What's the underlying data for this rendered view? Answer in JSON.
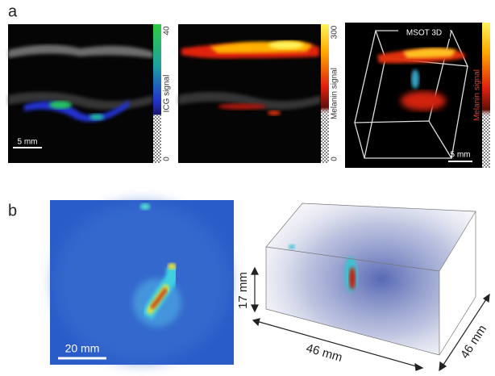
{
  "panel_a": {
    "label": "a",
    "images": [
      {
        "scale_bar": "5 mm",
        "colorbar": {
          "max": 40,
          "label": "ICG signal",
          "min": 0
        }
      },
      {
        "colorbar": {
          "max": 300,
          "label": "Melanin signal",
          "min": 0
        }
      },
      {
        "title": "MSOT 3D",
        "scale_bar": "5 mm",
        "colorbar": {
          "label": "Melanin signal"
        }
      }
    ]
  },
  "panel_b": {
    "label": "b",
    "images": [
      {
        "scale_bar": "20 mm"
      },
      {
        "dimensions": {
          "height": "17 mm",
          "width": "46 mm",
          "depth": "46 mm"
        }
      }
    ]
  }
}
